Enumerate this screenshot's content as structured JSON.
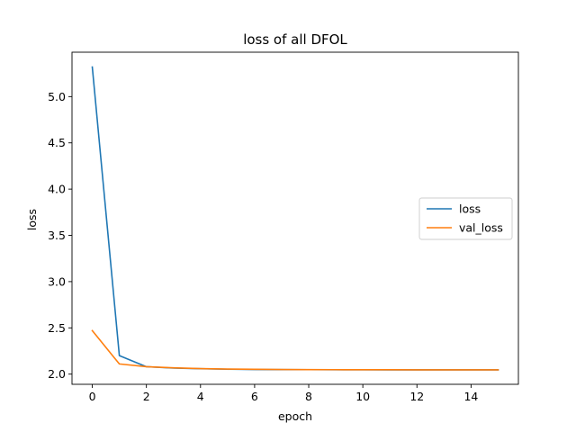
{
  "chart_data": {
    "type": "line",
    "title": "loss of all DFOL",
    "xlabel": "epoch",
    "ylabel": "loss",
    "x": [
      0,
      1,
      2,
      3,
      4,
      5,
      6,
      7,
      8,
      9,
      10,
      11,
      12,
      13,
      14,
      15
    ],
    "series": [
      {
        "name": "loss",
        "color": "#1f77b4",
        "values": [
          5.32,
          2.2,
          2.08,
          2.065,
          2.058,
          2.053,
          2.05,
          2.049,
          2.048,
          2.047,
          2.047,
          2.046,
          2.046,
          2.046,
          2.046,
          2.046
        ]
      },
      {
        "name": "val_loss",
        "color": "#ff7f0e",
        "values": [
          2.47,
          2.11,
          2.08,
          2.068,
          2.06,
          2.055,
          2.052,
          2.05,
          2.049,
          2.048,
          2.047,
          2.047,
          2.046,
          2.046,
          2.046,
          2.046
        ]
      }
    ],
    "xlim": [
      -0.75,
      15.75
    ],
    "ylim": [
      1.89,
      5.48
    ],
    "xticks": [
      0,
      2,
      4,
      6,
      8,
      10,
      12,
      14
    ],
    "xtick_labels": [
      "0",
      "2",
      "4",
      "6",
      "8",
      "10",
      "12",
      "14"
    ],
    "yticks": [
      2.0,
      2.5,
      3.0,
      3.5,
      4.0,
      4.5,
      5.0
    ],
    "ytick_labels": [
      "2.0",
      "2.5",
      "3.0",
      "3.5",
      "4.0",
      "4.5",
      "5.0"
    ],
    "grid": false,
    "legend_position": "center-right"
  }
}
